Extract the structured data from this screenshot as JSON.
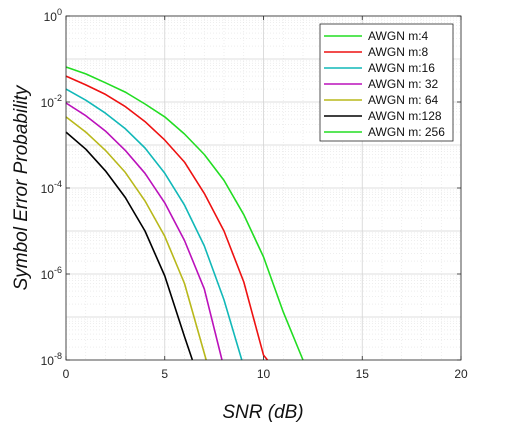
{
  "chart_data": {
    "type": "line",
    "title": "",
    "xlabel": "SNR (dB)",
    "ylabel": "Symbol Error Probability",
    "xlim": [
      0,
      20
    ],
    "ylim": [
      1e-08,
      1
    ],
    "yscale": "log",
    "grid": true,
    "legend_position": "top-right",
    "x_ticks": [
      {
        "value": 0,
        "label": "0"
      },
      {
        "value": 5,
        "label": "5"
      },
      {
        "value": 10,
        "label": "10"
      },
      {
        "value": 15,
        "label": "15"
      },
      {
        "value": 20,
        "label": "20"
      }
    ],
    "y_ticks": [
      {
        "exp": 0,
        "base": "10",
        "sup": "0"
      },
      {
        "exp": -2,
        "base": "10",
        "sup": "-2"
      },
      {
        "exp": -4,
        "base": "10",
        "sup": "-4"
      },
      {
        "exp": -6,
        "base": "10",
        "sup": "-6"
      },
      {
        "exp": -8,
        "base": "10",
        "sup": "-8"
      }
    ],
    "series": [
      {
        "name": "AWGN m:4",
        "color": "#22dd22",
        "x": [
          0,
          1,
          2,
          3,
          4,
          5,
          6,
          7,
          8,
          9,
          10,
          11,
          12
        ],
        "y": [
          0.065,
          0.045,
          0.028,
          0.017,
          0.009,
          0.0045,
          0.0018,
          0.0006,
          0.00015,
          2.4e-05,
          2.5e-06,
          1.3e-07,
          1e-08
        ]
      },
      {
        "name": "AWGN m:8",
        "color": "#ee1111",
        "x": [
          0,
          1,
          2,
          3,
          4,
          5,
          6,
          7,
          8,
          9,
          10,
          10.2
        ],
        "y": [
          0.04,
          0.025,
          0.015,
          0.0078,
          0.0035,
          0.0013,
          0.0004,
          7.5e-05,
          1e-05,
          6.5e-07,
          1.3e-08,
          1e-08
        ]
      },
      {
        "name": "AWGN m:16",
        "color": "#11b8b8",
        "x": [
          0,
          1,
          2,
          3,
          4,
          5,
          6,
          7,
          8,
          8.9
        ],
        "y": [
          0.02,
          0.011,
          0.0055,
          0.0024,
          0.00085,
          0.00022,
          4e-05,
          4.5e-06,
          2.5e-07,
          1e-08
        ]
      },
      {
        "name": "AWGN m: 32",
        "color": "#bb11bb",
        "x": [
          0,
          1,
          2,
          3,
          4,
          5,
          6,
          7,
          7.9
        ],
        "y": [
          0.0095,
          0.0048,
          0.0021,
          0.00075,
          0.00022,
          4.5e-05,
          6e-06,
          4.5e-07,
          1e-08
        ]
      },
      {
        "name": "AWGN m: 64",
        "color": "#b8b81a",
        "x": [
          0,
          1,
          2,
          3,
          4,
          5,
          6,
          7.1
        ],
        "y": [
          0.0045,
          0.002,
          0.00075,
          0.00023,
          5e-05,
          7.5e-06,
          6e-07,
          1e-08
        ]
      },
      {
        "name": "AWGN m:128",
        "color": "#000000",
        "x": [
          0,
          1,
          2,
          3,
          4,
          5,
          6,
          6.4
        ],
        "y": [
          0.002,
          0.0008,
          0.00025,
          6e-05,
          1e-05,
          9e-07,
          3.5e-08,
          1e-08
        ]
      },
      {
        "name": "AWGN m: 256",
        "color": "#22dd22",
        "x": [],
        "y": []
      }
    ]
  }
}
